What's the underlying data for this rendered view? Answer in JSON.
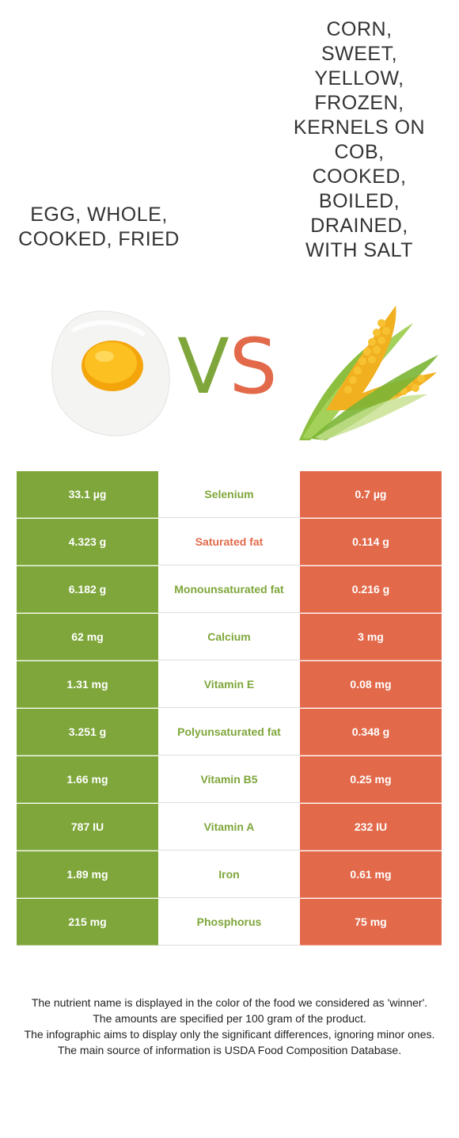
{
  "food_left": {
    "name": "Egg, whole, cooked, fried",
    "color": "#7ea63a",
    "image": "fried-egg-icon"
  },
  "food_right": {
    "name": "Corn, sweet, yellow, frozen, kernels on cob, cooked, boiled, drained, with salt",
    "color": "#e2694a",
    "image": "corn-cob-icon"
  },
  "vs": {
    "v": "V",
    "s": "S"
  },
  "rows": [
    {
      "left": "33.1 µg",
      "nutrient": "Selenium",
      "right": "0.7 µg",
      "winner": "left"
    },
    {
      "left": "4.323 g",
      "nutrient": "Saturated fat",
      "right": "0.114 g",
      "winner": "right"
    },
    {
      "left": "6.182 g",
      "nutrient": "Monounsaturated fat",
      "right": "0.216 g",
      "winner": "left"
    },
    {
      "left": "62 mg",
      "nutrient": "Calcium",
      "right": "3 mg",
      "winner": "left"
    },
    {
      "left": "1.31 mg",
      "nutrient": "Vitamin E",
      "right": "0.08 mg",
      "winner": "left"
    },
    {
      "left": "3.251 g",
      "nutrient": "Polyunsaturated fat",
      "right": "0.348 g",
      "winner": "left"
    },
    {
      "left": "1.66 mg",
      "nutrient": "Vitamin B5",
      "right": "0.25 mg",
      "winner": "left"
    },
    {
      "left": "787 IU",
      "nutrient": "Vitamin A",
      "right": "232 IU",
      "winner": "left"
    },
    {
      "left": "1.89 mg",
      "nutrient": "Iron",
      "right": "0.61 mg",
      "winner": "left"
    },
    {
      "left": "215 mg",
      "nutrient": "Phosphorus",
      "right": "75 mg",
      "winner": "left"
    }
  ],
  "footnote": {
    "line1": "The nutrient name is displayed in the color of the food we considered as 'winner'.",
    "line2": "The amounts are specified per 100 gram of the product.",
    "line3": "The infographic aims to display only the significant differences, ignoring minor ones.",
    "line4": "The main source of information is USDA Food Composition Database."
  }
}
